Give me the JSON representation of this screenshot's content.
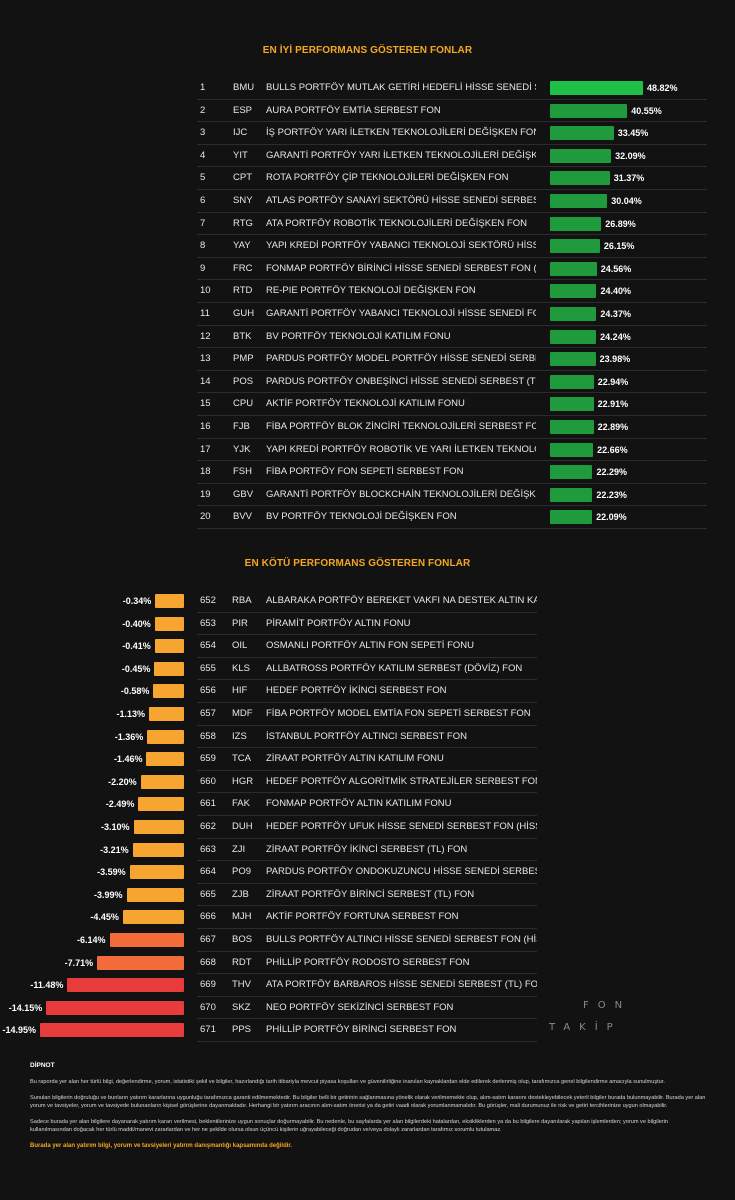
{
  "top_title": "EN İYİ PERFORMANS GÖSTEREN FONLAR",
  "bottom_title": "EN KÖTÜ PERFORMANS GÖSTEREN FONLAR",
  "watermark": [
    "FON",
    "TAKİP"
  ],
  "colors": {
    "top_bar": "#1f9a3c",
    "top_bar_best": "#1fc04a",
    "bottom_bar_mild": "#f7a531",
    "bottom_bar_mid": "#f26b3a",
    "bottom_bar_worst": "#e83c3c"
  },
  "chart_data": [
    {
      "type": "bar",
      "title": "EN İYİ PERFORMANS GÖSTEREN FONLAR",
      "unit": "%",
      "rows": [
        {
          "rank": "1",
          "code": "BMU",
          "name": "BULLS PORTFÖY MUTLAK GETİRİ HEDEFLİ HİSSE SENEDİ SERBEST FON",
          "value": 48.82,
          "label": "48.82%"
        },
        {
          "rank": "2",
          "code": "ESP",
          "name": "AURA PORTFÖY EMTİA SERBEST FON",
          "value": 40.55,
          "label": "40.55%"
        },
        {
          "rank": "3",
          "code": "IJC",
          "name": "İŞ PORTFÖY YARI İLETKEN TEKNOLOJİLERİ DEĞİŞKEN FON",
          "value": 33.45,
          "label": "33.45%"
        },
        {
          "rank": "4",
          "code": "YIT",
          "name": "GARANTİ PORTFÖY YARI İLETKEN TEKNOLOJİLERİ DEĞİŞKEN FON",
          "value": 32.09,
          "label": "32.09%"
        },
        {
          "rank": "5",
          "code": "CPT",
          "name": "ROTA PORTFÖY ÇİP TEKNOLOJİLERİ DEĞİŞKEN FON",
          "value": 31.37,
          "label": "31.37%"
        },
        {
          "rank": "6",
          "code": "SNY",
          "name": "ATLAS PORTFÖY SANAYİ SEKTÖRÜ HİSSE SENEDİ SERBEST FON",
          "value": 30.04,
          "label": "30.04%"
        },
        {
          "rank": "7",
          "code": "RTG",
          "name": "ATA PORTFÖY ROBOTİK TEKNOLOJİLERİ DEĞİŞKEN FON",
          "value": 26.89,
          "label": "26.89%"
        },
        {
          "rank": "8",
          "code": "YAY",
          "name": "YAPI KREDİ PORTFÖY YABANCI TEKNOLOJİ SEKTÖRÜ HİSSE SENEDİ FONU",
          "value": 26.15,
          "label": "26.15%"
        },
        {
          "rank": "9",
          "code": "FRC",
          "name": "FONMAP PORTFÖY BİRİNCİ HİSSE SENEDİ SERBEST FON (HİSSE SENEDİ YOĞUN FON)",
          "value": 24.56,
          "label": "24.56%"
        },
        {
          "rank": "10",
          "code": "RTD",
          "name": "RE-PIE PORTFÖY TEKNOLOJİ DEĞİŞKEN FON",
          "value": 24.4,
          "label": "24.40%"
        },
        {
          "rank": "11",
          "code": "GUH",
          "name": "GARANTİ PORTFÖY YABANCI TEKNOLOJİ HİSSE SENEDİ FONU",
          "value": 24.37,
          "label": "24.37%"
        },
        {
          "rank": "12",
          "code": "BTK",
          "name": "BV PORTFÖY TEKNOLOJİ KATILIM FONU",
          "value": 24.24,
          "label": "24.24%"
        },
        {
          "rank": "13",
          "code": "PMP",
          "name": "PARDUS PORTFÖY MODEL PORTFÖY HİSSE SENEDİ SERBEST FON",
          "value": 23.98,
          "label": "23.98%"
        },
        {
          "rank": "14",
          "code": "POS",
          "name": "PARDUS PORTFÖY ONBEŞİNCİ HİSSE SENEDİ SERBEST (TL) FON",
          "value": 22.94,
          "label": "22.94%"
        },
        {
          "rank": "15",
          "code": "CPU",
          "name": "AKTİF PORTFÖY TEKNOLOJİ KATILIM FONU",
          "value": 22.91,
          "label": "22.91%"
        },
        {
          "rank": "16",
          "code": "FJB",
          "name": "FİBA PORTFÖY BLOK ZİNCİRİ TEKNOLOJİLERİ SERBEST FON",
          "value": 22.89,
          "label": "22.89%"
        },
        {
          "rank": "17",
          "code": "YJK",
          "name": "YAPI KREDİ PORTFÖY ROBOTİK VE YARI İLETKEN TEKNOLOJİLERİ DEĞİŞKEN FON",
          "value": 22.66,
          "label": "22.66%"
        },
        {
          "rank": "18",
          "code": "FSH",
          "name": "FİBA PORTFÖY FON SEPETİ SERBEST FON",
          "value": 22.29,
          "label": "22.29%"
        },
        {
          "rank": "19",
          "code": "GBV",
          "name": "GARANTİ PORTFÖY BLOCKCHAİN TEKNOLOJİLERİ DEĞİŞKEN FON",
          "value": 22.23,
          "label": "22.23%"
        },
        {
          "rank": "20",
          "code": "BVV",
          "name": "BV PORTFÖY TEKNOLOJİ DEĞİŞKEN FON",
          "value": 22.09,
          "label": "22.09%"
        }
      ]
    },
    {
      "type": "bar",
      "title": "EN KÖTÜ PERFORMANS GÖSTEREN FONLAR",
      "unit": "%",
      "rows": [
        {
          "rank": "652",
          "code": "RBA",
          "name": "ALBARAKA PORTFÖY BEREKET VAKFI NA DESTEK ALTIN KATILIM FONU",
          "value": -0.34,
          "label": "-0.34%"
        },
        {
          "rank": "653",
          "code": "PIR",
          "name": "PİRAMİT PORTFÖY ALTIN FONU",
          "value": -0.4,
          "label": "-0.40%"
        },
        {
          "rank": "654",
          "code": "OIL",
          "name": "OSMANLI PORTFÖY ALTIN FON SEPETİ FONU",
          "value": -0.41,
          "label": "-0.41%"
        },
        {
          "rank": "655",
          "code": "KLS",
          "name": "ALLBATROSS PORTFÖY KATILIM SERBEST (DÖVİZ) FON",
          "value": -0.45,
          "label": "-0.45%"
        },
        {
          "rank": "656",
          "code": "HIF",
          "name": "HEDEF PORTFÖY İKİNCİ SERBEST FON",
          "value": -0.58,
          "label": "-0.58%"
        },
        {
          "rank": "657",
          "code": "MDF",
          "name": "FİBA PORTFÖY MODEL EMTİA FON SEPETİ SERBEST FON",
          "value": -1.13,
          "label": "-1.13%"
        },
        {
          "rank": "658",
          "code": "IZS",
          "name": "İSTANBUL PORTFÖY ALTINCI SERBEST FON",
          "value": -1.36,
          "label": "-1.36%"
        },
        {
          "rank": "659",
          "code": "TCA",
          "name": "ZİRAAT PORTFÖY ALTIN KATILIM FONU",
          "value": -1.46,
          "label": "-1.46%"
        },
        {
          "rank": "660",
          "code": "HGR",
          "name": "HEDEF PORTFÖY ALGORİTMİK STRATEJİLER SERBEST FON",
          "value": -2.2,
          "label": "-2.20%"
        },
        {
          "rank": "661",
          "code": "FAK",
          "name": "FONMAP PORTFÖY ALTIN KATILIM FONU",
          "value": -2.49,
          "label": "-2.49%"
        },
        {
          "rank": "662",
          "code": "DUH",
          "name": "HEDEF PORTFÖY UFUK HİSSE SENEDİ SERBEST FON (HİSSE SENEDİ YOĞUN FON)",
          "value": -3.1,
          "label": "-3.10%"
        },
        {
          "rank": "663",
          "code": "ZJI",
          "name": "ZİRAAT PORTFÖY İKİNCİ SERBEST (TL) FON",
          "value": -3.21,
          "label": "-3.21%"
        },
        {
          "rank": "664",
          "code": "PO9",
          "name": "PARDUS PORTFÖY ONDOKUZUNCU HİSSE SENEDİ SERBEST FON",
          "value": -3.59,
          "label": "-3.59%"
        },
        {
          "rank": "665",
          "code": "ZJB",
          "name": "ZİRAAT PORTFÖY BİRİNCİ SERBEST (TL) FON",
          "value": -3.99,
          "label": "-3.99%"
        },
        {
          "rank": "666",
          "code": "MJH",
          "name": "AKTİF PORTFÖY FORTUNA SERBEST FON",
          "value": -4.45,
          "label": "-4.45%"
        },
        {
          "rank": "667",
          "code": "BOS",
          "name": "BULLS PORTFÖY ALTINCI HİSSE SENEDİ SERBEST FON (HİSSE SENEDİ YOĞUN FON)",
          "value": -6.14,
          "label": "-6.14%"
        },
        {
          "rank": "668",
          "code": "RDT",
          "name": "PHİLLİP PORTFÖY RODOSTO SERBEST FON",
          "value": -7.71,
          "label": "-7.71%"
        },
        {
          "rank": "669",
          "code": "THV",
          "name": "ATA PORTFÖY BARBAROS HİSSE SENEDİ SERBEST (TL) FON (HİSSE SENEDİ YOĞUN FON)",
          "value": -11.48,
          "label": "-11.48%"
        },
        {
          "rank": "670",
          "code": "SKZ",
          "name": "NEO PORTFÖY SEKİZİNCİ SERBEST FON",
          "value": -14.15,
          "label": "-14.15%"
        },
        {
          "rank": "671",
          "code": "PPS",
          "name": "PHİLLİP PORTFÖY BİRİNCİ SERBEST FON",
          "value": -14.95,
          "label": "-14.95%"
        }
      ]
    }
  ],
  "disclaimer": {
    "heading": "DİPNOT",
    "p1": "Bu raporda yer alan her türlü bilgi, değerlendirme, yorum, istatistiki şekil ve bilgiler, hazırlandığı tarih itibariyla mevcut piyasa koşulları ve güvenilirliğine inanılan kaynaklardan elde edilerek derlenmiş olup, tarafımızca genel bilgilendirme amacıyla sunulmuştur.",
    "p2": "Sunulan bilgilerin doğruluğu ve bunların yatırım kararlarına uygunluğu tarafımızca garanti edilmemektedir. Bu bilgiler belli bir getirinin sağlanmasına yönelik olarak verilmemekte olup, alım-satım kararını destekleyebilecek yeterli bilgiler burada bulunmayabilir. Burada yer alan yorum ve tavsiyeler, yorum ve tavsiyede bulunanların kişisel görüşlerine dayanmaktadır. Herhangi bir yatırım aracının alım-satım önerisi ya da getiri vaadi olarak yorumlanmamalıdır. Bu görüşler, mali durumunuz ile risk ve getiri tercihlerinize uygun olmayabilir.",
    "p3": "Sadece burada yer alan bilgilere dayanarak yatırım kararı verilmesi, beklentilerinize uygun sonuçlar doğurmayabilir. Bu nedenle, bu sayfalarda yer alan bilgilerdeki hatalardan, eksikliklerden ya da bu bilgilere dayanılarak yapılan işlemlerden; yorum ve bilgilerin kullanılmasından doğacak her türlü maddi/manevi zararlardan ve her ne şekilde olursa olsun üçüncü kişilerin uğrayabileceği doğrudan ve/veya dolaylı zararlardan tarafımız sorumlu tutulamaz.",
    "warning": "Burada yer alan yatırım bilgi, yorum ve tavsiyeleri yatırım danışmanlığı kapsamında değildir."
  }
}
